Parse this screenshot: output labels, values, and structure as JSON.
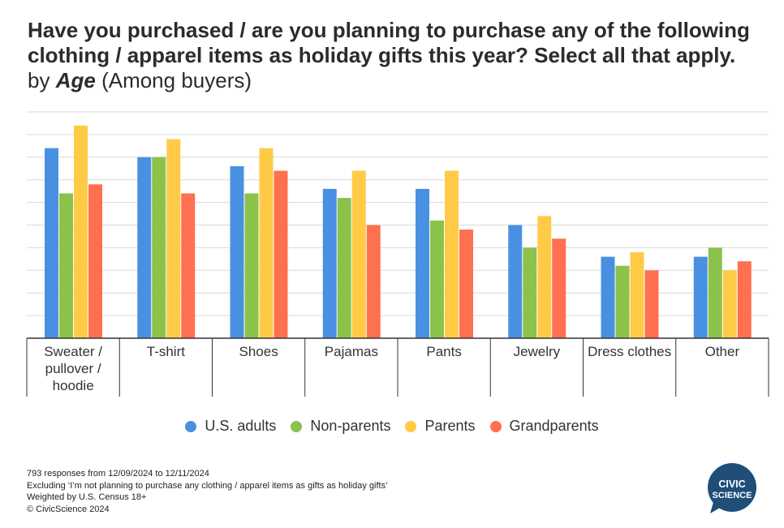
{
  "title": {
    "bold": "Have you purchased / are you planning to purchase any of the following clothing / apparel items as holiday gifts this year? Select all that apply.",
    "by": "by",
    "segment": "Age",
    "suffix": "(Among buyers)"
  },
  "chart_data": {
    "type": "bar",
    "categories": [
      "Sweater / pullover / hoodie",
      "T-shirt",
      "Shoes",
      "Pajamas",
      "Pants",
      "Jewelry",
      "Dress clothes",
      "Other"
    ],
    "category_lines": [
      [
        "Sweater /",
        "pullover /",
        "hoodie"
      ],
      [
        "T-shirt"
      ],
      [
        "Shoes"
      ],
      [
        "Pajamas"
      ],
      [
        "Pants"
      ],
      [
        "Jewelry"
      ],
      [
        "Dress clothes"
      ],
      [
        "Other"
      ]
    ],
    "series": [
      {
        "name": "U.S. adults",
        "color": "#4a90e2",
        "values": [
          42,
          40,
          38,
          33,
          33,
          25,
          18,
          18
        ]
      },
      {
        "name": "Non-parents",
        "color": "#8bc34a",
        "values": [
          32,
          40,
          32,
          31,
          26,
          20,
          16,
          20
        ]
      },
      {
        "name": "Parents",
        "color": "#ffcb47",
        "values": [
          47,
          44,
          42,
          37,
          37,
          27,
          19,
          15
        ]
      },
      {
        "name": "Grandparents",
        "color": "#ff7050",
        "values": [
          34,
          32,
          37,
          25,
          24,
          22,
          15,
          17
        ]
      }
    ],
    "ylim": [
      0,
      50
    ],
    "grid": true,
    "legend_position": "bottom",
    "xlabel": "",
    "ylabel": ""
  },
  "footnotes": [
    "793 responses from 12/09/2024 to 12/11/2024",
    "Excluding ‘I’m not planning to purchase any clothing / apparel items as gifts as holiday gifts’",
    "Weighted by U.S. Census 18+",
    "© CivicScience 2024"
  ],
  "logo": {
    "line1": "CIVIC",
    "line2": "SCIENCE",
    "color": "#1f4e79"
  }
}
